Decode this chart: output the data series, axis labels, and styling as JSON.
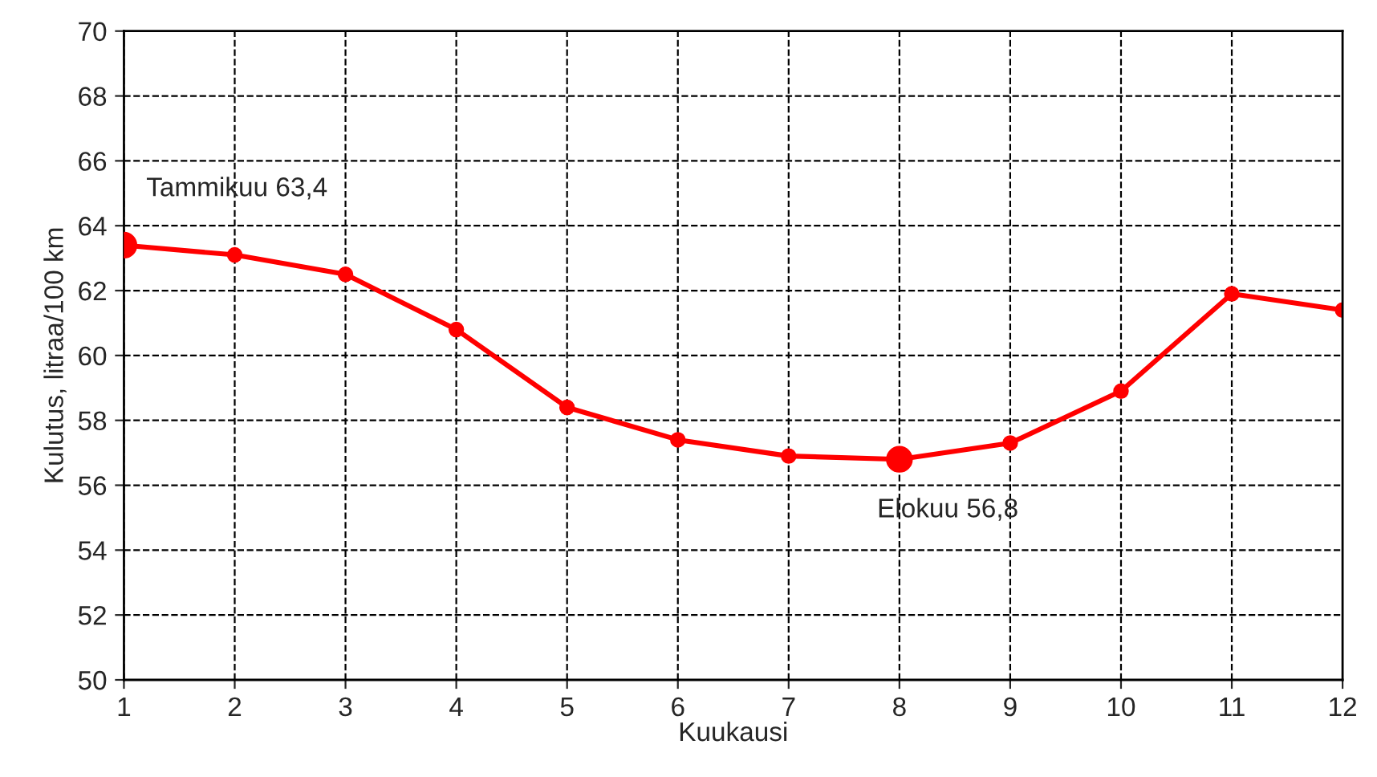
{
  "chart_data": {
    "type": "line",
    "xlabel": "Kuukausi",
    "ylabel": "Kulutus, litraa/100 km",
    "x": [
      1,
      2,
      3,
      4,
      5,
      6,
      7,
      8,
      9,
      10,
      11,
      12
    ],
    "series": [
      {
        "color": "#ff0000",
        "values": [
          63.4,
          63.1,
          62.5,
          60.8,
          58.4,
          57.4,
          56.9,
          56.8,
          57.3,
          58.9,
          61.9,
          61.4
        ]
      }
    ],
    "xlim": [
      1,
      12
    ],
    "xticks": [
      1,
      2,
      3,
      4,
      5,
      6,
      7,
      8,
      9,
      10,
      11,
      12
    ],
    "ylim": [
      50,
      70
    ],
    "yticks": [
      50,
      52,
      54,
      56,
      58,
      60,
      62,
      64,
      66,
      68,
      70
    ],
    "grid": true,
    "marker": "circle",
    "line_style": "solid",
    "annotations": [
      {
        "text": "Tammikuu 63,4",
        "x": 1,
        "y": 63.4
      },
      {
        "text": "Elokuu 56,8",
        "x": 8,
        "y": 56.8
      }
    ]
  }
}
